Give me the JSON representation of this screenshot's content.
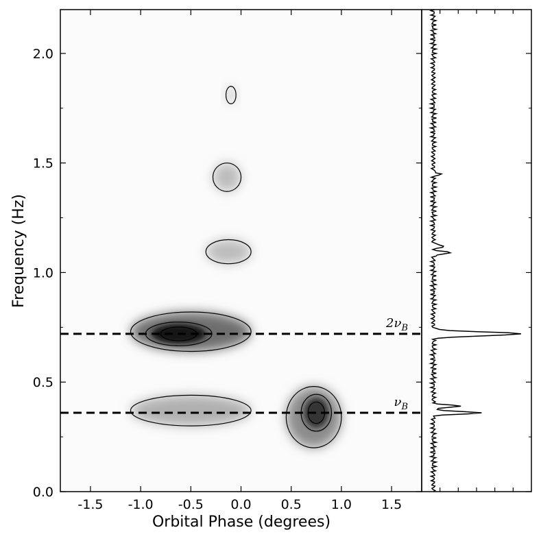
{
  "chart_data": {
    "type": "heatmap",
    "title": "",
    "xlabel": "Orbital Phase (degrees)",
    "ylabel": "Frequency (Hz)",
    "xlim": [
      -1.8,
      1.8
    ],
    "ylim": [
      0.0,
      2.2
    ],
    "x_ticks": [
      "-1.5",
      "-1.0",
      "-0.5",
      "0.0",
      "0.5",
      "1.0",
      "1.5"
    ],
    "x_tick_values": [
      -1.5,
      -1.0,
      -0.5,
      0.0,
      0.5,
      1.0,
      1.5
    ],
    "y_ticks": [
      "0.0",
      "0.5",
      "1.0",
      "1.5",
      "2.0"
    ],
    "y_tick_values": [
      0.0,
      0.5,
      1.0,
      1.5,
      2.0
    ],
    "reference_lines": [
      {
        "label_main": "2ν",
        "label_sub": "B",
        "y": 0.72
      },
      {
        "label_main": "ν",
        "label_sub": "B",
        "y": 0.36
      }
    ],
    "blobs": [
      {
        "name": "2nuB-band",
        "x": [
          -1.1,
          0.1
        ],
        "y": [
          0.64,
          0.82
        ],
        "peak_x": -0.62,
        "peak_y": 0.72,
        "intensity": 1.0
      },
      {
        "name": "nuB-band-left",
        "x": [
          -1.1,
          0.1
        ],
        "y": [
          0.3,
          0.44
        ],
        "intensity": 0.45
      },
      {
        "name": "nuB-band-right",
        "x": [
          0.45,
          1.0
        ],
        "y": [
          0.2,
          0.48
        ],
        "peak_x": 0.75,
        "peak_y": 0.36,
        "intensity": 0.75
      },
      {
        "name": "band-1.1",
        "x": [
          -0.35,
          0.1
        ],
        "y": [
          1.04,
          1.15
        ],
        "intensity": 0.35
      },
      {
        "name": "band-1.45",
        "x": [
          -0.28,
          0.0
        ],
        "y": [
          1.37,
          1.5
        ],
        "intensity": 0.35
      },
      {
        "name": "band-1.8",
        "x": [
          -0.15,
          -0.05
        ],
        "y": [
          1.77,
          1.85
        ],
        "intensity": 0.2
      }
    ],
    "side_profile": {
      "xlabel": "",
      "ylabel": "",
      "peaks": [
        {
          "freq": 0.72,
          "height": 1.0
        },
        {
          "freq": 0.36,
          "height": 0.55
        },
        {
          "freq": 0.39,
          "height": 0.3
        },
        {
          "freq": 1.09,
          "height": 0.2
        },
        {
          "freq": 1.12,
          "height": 0.13
        },
        {
          "freq": 1.45,
          "height": 0.08
        }
      ]
    }
  }
}
